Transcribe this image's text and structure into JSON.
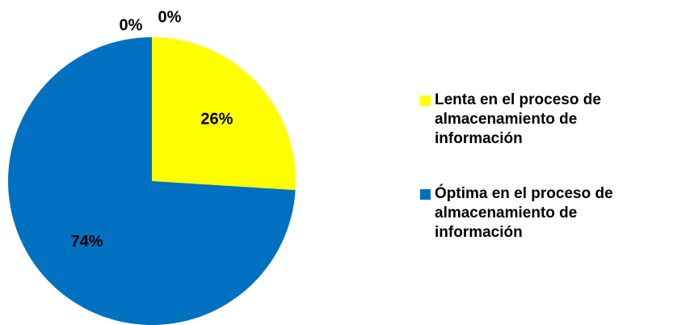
{
  "chart_data": {
    "type": "pie",
    "categories": [
      "Lenta en el proceso de almacenamiento de información",
      "Óptima en el proceso de almacenamiento de información",
      null,
      null
    ],
    "values": [
      26,
      74,
      0,
      0
    ],
    "value_labels": [
      "26%",
      "74%",
      "0%",
      "0%"
    ],
    "colors": [
      "#ffff00",
      "#0070c0"
    ],
    "legend": "right"
  }
}
